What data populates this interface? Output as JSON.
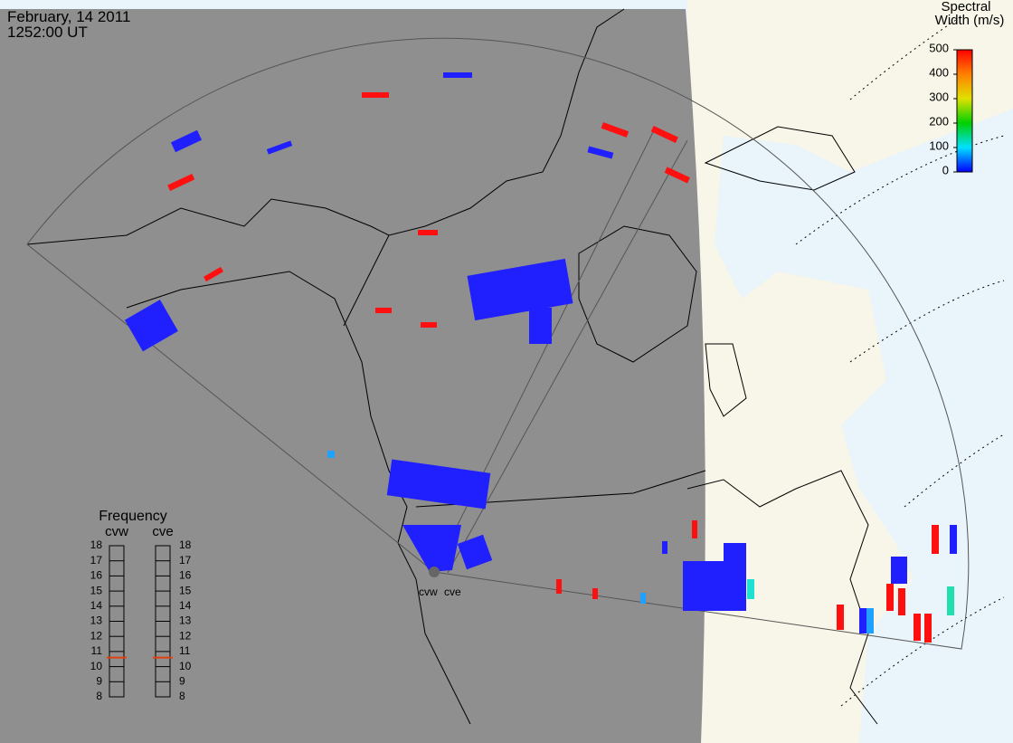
{
  "header": {
    "date": "February, 14 2011",
    "time": "1252:00 UT"
  },
  "colorbar": {
    "title_line1": "Spectral",
    "title_line2": "Width (m/s)",
    "range": [
      0,
      500
    ],
    "ticks": [
      0,
      100,
      200,
      300,
      400,
      500
    ]
  },
  "frequency": {
    "title": "Frequency",
    "range": [
      8,
      18
    ],
    "ticks": [
      8,
      9,
      10,
      11,
      12,
      13,
      14,
      15,
      16,
      17,
      18
    ],
    "radars": [
      {
        "name": "cvw",
        "value": 10.6
      },
      {
        "name": "cve",
        "value": 10.6
      }
    ]
  },
  "sites": [
    {
      "name": "cvw"
    },
    {
      "name": "cve"
    }
  ]
}
